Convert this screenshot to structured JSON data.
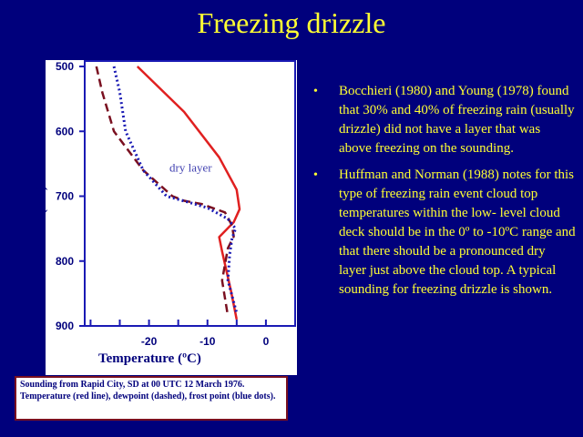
{
  "slide": {
    "title": "Freezing drizzle"
  },
  "chart_data": {
    "type": "line",
    "title": "",
    "xlabel": "Temperature (ºC)",
    "ylabel": "Pressure (mb)",
    "xlim": [
      -31,
      5
    ],
    "ylim": [
      500,
      900
    ],
    "x_ticks": [
      -20,
      -10,
      0
    ],
    "x_tick_labels": [
      "-20",
      "-10",
      "0"
    ],
    "y_ticks": [
      500,
      600,
      700,
      800,
      900
    ],
    "y_tick_labels": [
      "500",
      "600",
      "700",
      "800",
      "900"
    ],
    "annotation": "dry layer",
    "series": [
      {
        "key": "temperature",
        "style": "solid",
        "color": "#e02020",
        "points": [
          [
            -22,
            500
          ],
          [
            -14,
            570
          ],
          [
            -8,
            640
          ],
          [
            -5,
            690
          ],
          [
            -4.5,
            720
          ],
          [
            -5.5,
            740
          ],
          [
            -8,
            763
          ],
          [
            -7.5,
            785
          ],
          [
            -6,
            845
          ],
          [
            -5,
            890
          ]
        ]
      },
      {
        "key": "dewpoint",
        "style": "dashed",
        "color": "#7a1020",
        "points": [
          [
            -29,
            500
          ],
          [
            -28,
            540
          ],
          [
            -26,
            600
          ],
          [
            -21,
            660
          ],
          [
            -16,
            700
          ],
          [
            -14,
            707
          ],
          [
            -11,
            712
          ],
          [
            -7,
            725
          ],
          [
            -5.8,
            745
          ],
          [
            -5.5,
            762
          ],
          [
            -6.5,
            780
          ],
          [
            -7.5,
            830
          ],
          [
            -6.5,
            885
          ]
        ]
      },
      {
        "key": "frost-point",
        "style": "dotted",
        "color": "#1a1ab4",
        "points": [
          [
            -26,
            500
          ],
          [
            -25,
            540
          ],
          [
            -24,
            600
          ],
          [
            -21,
            660
          ],
          [
            -17,
            700
          ],
          [
            -13,
            710
          ],
          [
            -10,
            718
          ],
          [
            -6.5,
            735
          ],
          [
            -5.2,
            750
          ],
          [
            -5.8,
            765
          ],
          [
            -6.2,
            790
          ],
          [
            -6.5,
            830
          ],
          [
            -5,
            880
          ]
        ]
      }
    ],
    "colors": {
      "temperature": "#e02020",
      "dewpoint": "#7a1020",
      "frost_point": "#1a1ab4",
      "axis": "#1a1ab4",
      "text": "#00007c"
    }
  },
  "bullets": [
    {
      "marker": "•",
      "text": "Bocchieri (1980) and Young (1978) found that 30% and 40% of freezing rain (usually drizzle) did not have a layer that was above freezing on the sounding."
    },
    {
      "marker": "•",
      "text": "Huffman and Norman (1988) notes for this type of freezing rain event cloud top temperatures within the low- level cloud deck should be in the 0º to -10ºC range and that there should be a pronounced dry layer just above the cloud top. A typical sounding for freezing drizzle is shown."
    }
  ],
  "caption": "Sounding from Rapid City, SD at 00 UTC 12 March 1976. Temperature (red line), dewpoint (dashed), frost point (blue dots)."
}
